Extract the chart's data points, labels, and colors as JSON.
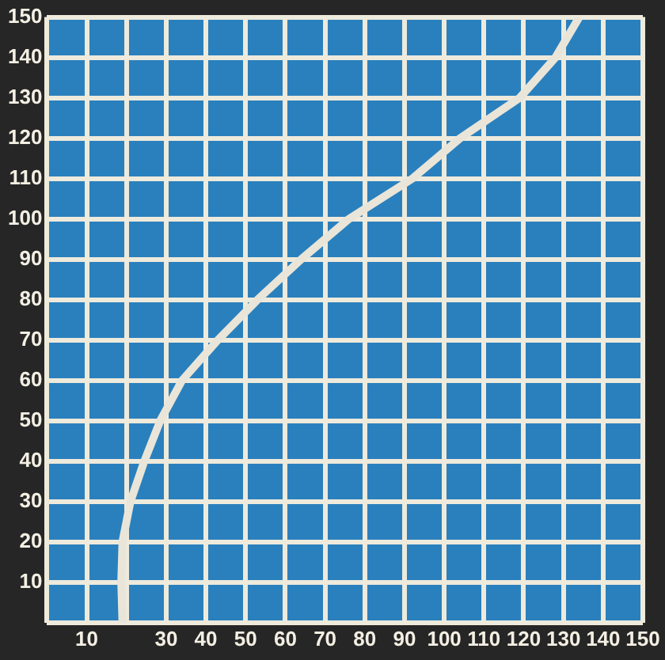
{
  "chart_data": {
    "type": "line",
    "grid": true,
    "series": [
      {
        "color": "#e9e5d8",
        "x": [
          19,
          18.7,
          19,
          21,
          24.5,
          28.5,
          34,
          43,
          53,
          64,
          76,
          92,
          104,
          119,
          128,
          134
        ],
        "values": [
          0,
          10,
          20,
          30,
          40,
          50,
          60,
          70,
          80,
          90,
          100,
          110,
          120,
          130,
          140,
          150
        ]
      }
    ],
    "xlim": [
      0,
      150
    ],
    "ylim": [
      0,
      150
    ],
    "xticks": [
      {
        "value": 0,
        "label": null
      },
      10,
      {
        "value": 20,
        "label": null
      },
      30,
      40,
      50,
      60,
      70,
      80,
      90,
      100,
      110,
      120,
      130,
      140,
      150
    ],
    "yticks": [
      {
        "value": 0,
        "label": null
      },
      10,
      20,
      30,
      40,
      50,
      60,
      70,
      80,
      90,
      100,
      110,
      120,
      130,
      140,
      150
    ]
  }
}
